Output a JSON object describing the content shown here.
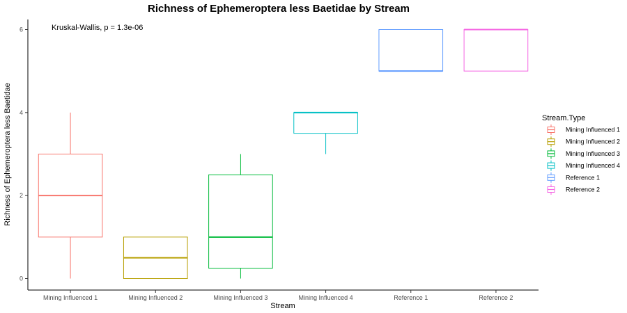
{
  "chart_data": {
    "type": "boxplot",
    "title": "Richness of Ephemeroptera less Baetidae by Stream",
    "annotation": "Kruskal-Wallis, p = 1.3e-06",
    "xlabel": "Stream",
    "ylabel": "Richness of Ephemeroptera less Baetidae",
    "ylim": [
      -0.4,
      6.35
    ],
    "yticks": [
      0,
      2,
      4,
      6
    ],
    "grid": false,
    "legend": {
      "title": "Stream.Type",
      "placement": "right"
    },
    "categories": [
      "Mining Influenced 1",
      "Mining Influenced 2",
      "Mining Influenced 3",
      "Mining Influenced 4",
      "Reference 1",
      "Reference 2"
    ],
    "series": [
      {
        "name": "Mining Influenced 1",
        "color": "#F8766D",
        "min": 0,
        "q1": 1,
        "median": 2,
        "q3": 3,
        "max": 4
      },
      {
        "name": "Mining Influenced 2",
        "color": "#B79F00",
        "min": 0,
        "q1": 0,
        "median": 0.5,
        "q3": 1,
        "max": 1
      },
      {
        "name": "Mining Influenced 3",
        "color": "#00BA38",
        "min": 0,
        "q1": 0.25,
        "median": 1,
        "q3": 2.5,
        "max": 3
      },
      {
        "name": "Mining Influenced 4",
        "color": "#00BFC4",
        "min": 3,
        "q1": 3.5,
        "median": 4,
        "q3": 4,
        "max": 4
      },
      {
        "name": "Reference 1",
        "color": "#619CFF",
        "min": 5,
        "q1": 5,
        "median": 5,
        "q3": 6,
        "max": 6
      },
      {
        "name": "Reference 2",
        "color": "#F564E3",
        "min": 5,
        "q1": 5,
        "median": 6,
        "q3": 6,
        "max": 6
      }
    ]
  }
}
